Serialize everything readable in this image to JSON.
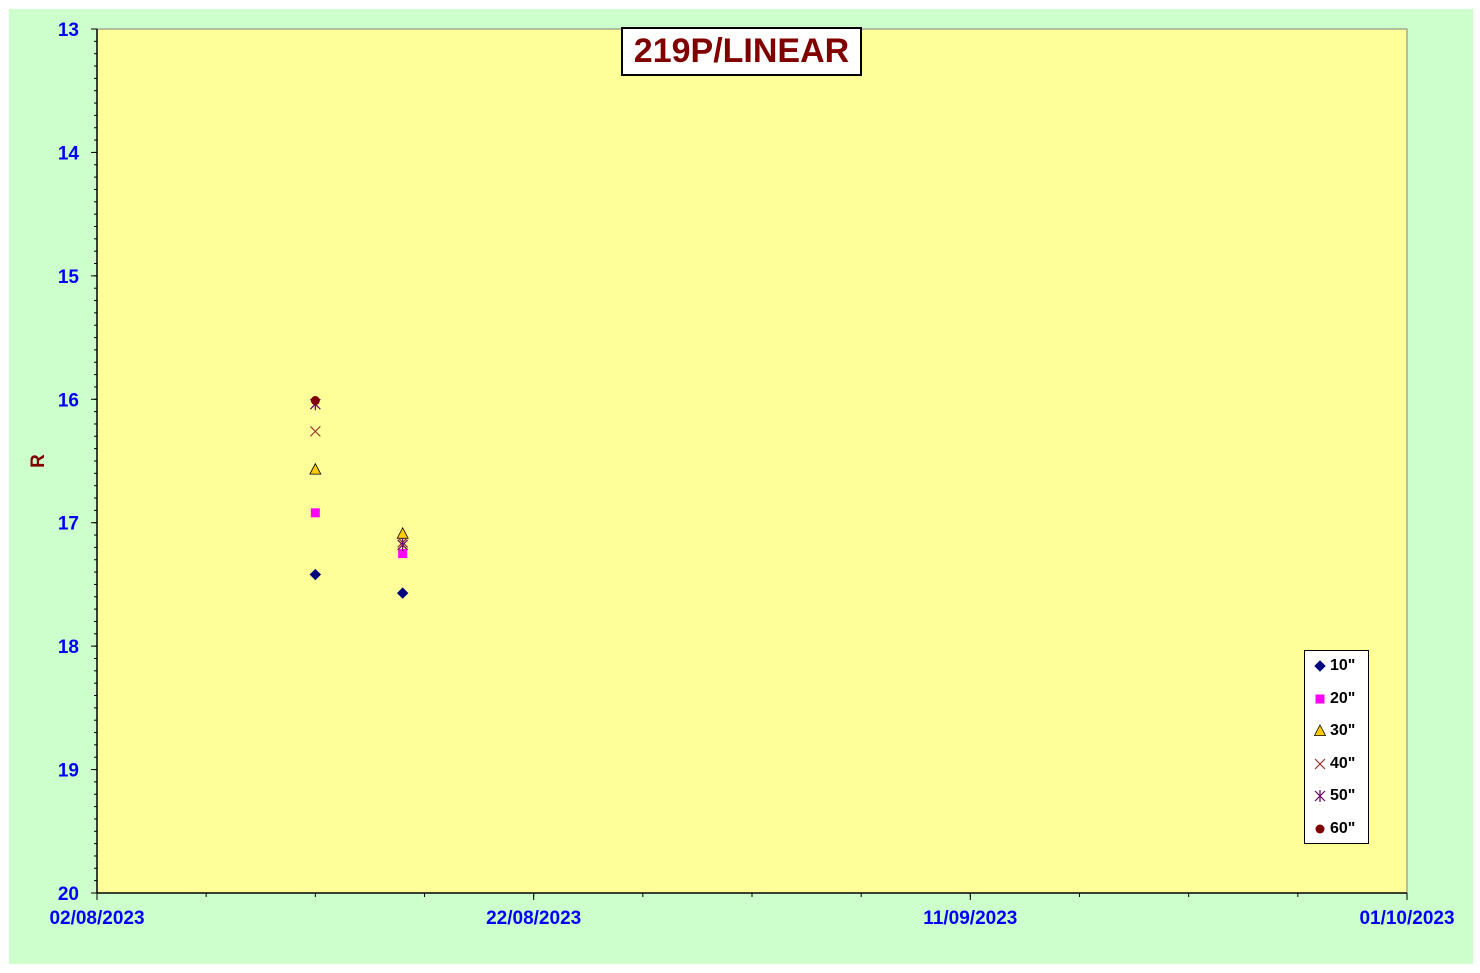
{
  "chart_data": {
    "type": "scatter",
    "title": "219P/LINEAR",
    "xlabel": "",
    "ylabel": "R",
    "x_ticks": [
      "02/08/2023",
      "22/08/2023",
      "11/09/2023",
      "01/10/2023"
    ],
    "xlim": [
      "2023-08-02",
      "2023-10-01"
    ],
    "ylim": [
      13,
      20
    ],
    "y_reversed": true,
    "y_ticks": [
      13,
      14,
      15,
      16,
      17,
      18,
      19,
      20
    ],
    "grid": false,
    "legend_position": "bottom-right",
    "plot_background": "#ffff99",
    "chart_background": "#ccffcc",
    "series": [
      {
        "name": "10\"",
        "marker": "diamond",
        "color": "#000080",
        "points": [
          {
            "x": "2023-08-12",
            "y": 17.42
          },
          {
            "x": "2023-08-16",
            "y": 17.57
          }
        ]
      },
      {
        "name": "20\"",
        "marker": "square",
        "color": "#ff00ff",
        "points": [
          {
            "x": "2023-08-12",
            "y": 16.92
          },
          {
            "x": "2023-08-16",
            "y": 17.25
          }
        ]
      },
      {
        "name": "30\"",
        "marker": "triangle",
        "color": "#ffcc00",
        "points": [
          {
            "x": "2023-08-12",
            "y": 16.57
          },
          {
            "x": "2023-08-16",
            "y": 17.09
          }
        ]
      },
      {
        "name": "40\"",
        "marker": "x",
        "color": "#993333",
        "points": [
          {
            "x": "2023-08-12",
            "y": 16.26
          },
          {
            "x": "2023-08-16",
            "y": 17.16
          }
        ]
      },
      {
        "name": "50\"",
        "marker": "star",
        "color": "#660066",
        "points": [
          {
            "x": "2023-08-12",
            "y": 16.04
          },
          {
            "x": "2023-08-16",
            "y": 17.18
          }
        ]
      },
      {
        "name": "60\"",
        "marker": "circle",
        "color": "#800000",
        "points": [
          {
            "x": "2023-08-12",
            "y": 16.01
          }
        ]
      }
    ]
  }
}
